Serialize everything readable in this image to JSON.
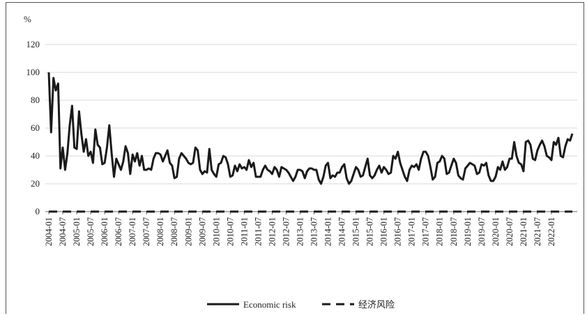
{
  "chart_data": {
    "type": "line",
    "ylabel": "%",
    "ylim": [
      0,
      120
    ],
    "yticks": [
      0,
      20,
      40,
      60,
      80,
      100,
      120
    ],
    "grid": "horizontal",
    "legend_position": "bottom",
    "x_start": "2004-01",
    "x_tick_labels": [
      "2004-01",
      "2004-07",
      "2005-01",
      "2005-07",
      "2006-01",
      "2006-07",
      "2007-01",
      "2007-07",
      "2008-01",
      "2008-07",
      "2009-01",
      "2009-07",
      "2010-01",
      "2010-07",
      "2011-01",
      "2011-07",
      "2012-01",
      "2012-07",
      "2013-01",
      "2013-07",
      "2014-01",
      "2014-07",
      "2015-01",
      "2015-07",
      "2016-01",
      "2016-07",
      "2017-01",
      "2017-07",
      "2018-01",
      "2018-07",
      "2019-01",
      "2019-07",
      "2020-01",
      "2020-07",
      "2021-01",
      "2021-07",
      "2022-01"
    ],
    "series": [
      {
        "name": "Economic risk",
        "style": "solid",
        "color": "#1a1a1a",
        "values": [
          100,
          57,
          96,
          87,
          92,
          31,
          46,
          30,
          42,
          62,
          76,
          46,
          45,
          72,
          56,
          43,
          52,
          40,
          43,
          35,
          59,
          48,
          46,
          34,
          35,
          46,
          62,
          42,
          25,
          38,
          34,
          30,
          36,
          47,
          42,
          27,
          41,
          36,
          42,
          33,
          40,
          30,
          30,
          31,
          30,
          38,
          42,
          42,
          41,
          36,
          40,
          44,
          35,
          33,
          24,
          25,
          38,
          42,
          40,
          38,
          35,
          34,
          35,
          46,
          44,
          30,
          27,
          29,
          28,
          45,
          30,
          27,
          25,
          34,
          35,
          40,
          39,
          34,
          25,
          26,
          33,
          29,
          34,
          31,
          32,
          30,
          37,
          32,
          35,
          25,
          25,
          25,
          30,
          33,
          30,
          29,
          27,
          32,
          30,
          25,
          32,
          31,
          30,
          28,
          25,
          22,
          25,
          30,
          30,
          29,
          24,
          29,
          31,
          31,
          30,
          30,
          23,
          20,
          25,
          33,
          35,
          24,
          26,
          25,
          28,
          28,
          32,
          34,
          24,
          20,
          22,
          27,
          32,
          30,
          25,
          26,
          32,
          38,
          26,
          24,
          26,
          30,
          33,
          28,
          32,
          30,
          27,
          28,
          40,
          38,
          43,
          35,
          30,
          25,
          22,
          30,
          33,
          32,
          34,
          30,
          38,
          43,
          43,
          40,
          32,
          23,
          25,
          35,
          36,
          40,
          38,
          27,
          28,
          33,
          38,
          35,
          26,
          24,
          23,
          31,
          33,
          35,
          34,
          33,
          27,
          28,
          34,
          33,
          35,
          26,
          22,
          22,
          25,
          32,
          30,
          36,
          30,
          32,
          38,
          38,
          50,
          40,
          35,
          34,
          29,
          50,
          51,
          48,
          38,
          37,
          44,
          48,
          51,
          47,
          40,
          39,
          37,
          50,
          48,
          53,
          40,
          39,
          47,
          52,
          51,
          56
        ]
      },
      {
        "name": "经济风险",
        "style": "dashed",
        "color": "#1a1a1a",
        "values": [
          0,
          0,
          0,
          0,
          0,
          0,
          0,
          0,
          0,
          0,
          0,
          0,
          0,
          0,
          0,
          0,
          0,
          0,
          0,
          0,
          0,
          0,
          0,
          0,
          0,
          0,
          0,
          0,
          0,
          0,
          0,
          0,
          0,
          0,
          0,
          0,
          0,
          0,
          0,
          0,
          0,
          0,
          0,
          0,
          0,
          0,
          0,
          0,
          0,
          0,
          0,
          0,
          0,
          0,
          0,
          0,
          0,
          0,
          0,
          0,
          0,
          0,
          0,
          0,
          0,
          0,
          0,
          0,
          0,
          0,
          0,
          0,
          0,
          0,
          0,
          0,
          0,
          0,
          0,
          0,
          0,
          0,
          0,
          0,
          0,
          0,
          0,
          0,
          0,
          0,
          0,
          0,
          0,
          0,
          0,
          0,
          0,
          0,
          0,
          0,
          0,
          0,
          0,
          0,
          0,
          0,
          0,
          0,
          0,
          0,
          0,
          0,
          0,
          0,
          0,
          0,
          0,
          0,
          0,
          0,
          0,
          0,
          0,
          0,
          0,
          0,
          0,
          0,
          0,
          0,
          0,
          0,
          0,
          0,
          0,
          0,
          0,
          0,
          0,
          0,
          0,
          0,
          0,
          0,
          0,
          0,
          0,
          0,
          0,
          0,
          0,
          0,
          0,
          0,
          0,
          0,
          0,
          0,
          0,
          0,
          0,
          0,
          0,
          0,
          0,
          0,
          0,
          0,
          0,
          0,
          0,
          0,
          0,
          0,
          0,
          0,
          0,
          0,
          0,
          0,
          0,
          0,
          0,
          0,
          0,
          0,
          0,
          0,
          0,
          0,
          0,
          0,
          0,
          0,
          0,
          0,
          0,
          0,
          0,
          0,
          0,
          0,
          0,
          0,
          0,
          0,
          0,
          0,
          0,
          0,
          0,
          0,
          0,
          0,
          0,
          0,
          0,
          0,
          0,
          0,
          0,
          0,
          0,
          0,
          0,
          0
        ]
      }
    ]
  }
}
